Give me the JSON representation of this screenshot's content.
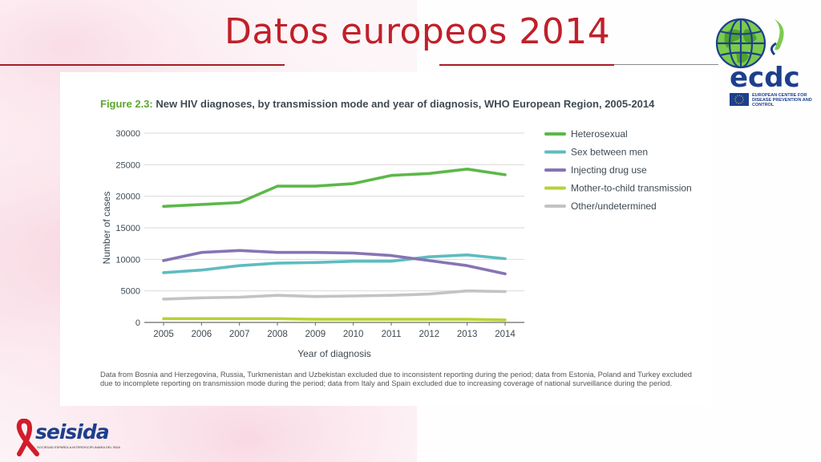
{
  "slide": {
    "title": "Datos europeos 2014"
  },
  "figure": {
    "number": "Figure 2.3:",
    "caption": "New HIV diagnoses, by transmission mode and year of diagnosis, WHO European Region, 2005-2014",
    "note": "Data from Bosnia and Herzegovina, Russia, Turkmenistan and Uzbekistan excluded due to inconsistent reporting during the period; data from Estonia, Poland and Turkey excluded due to incomplete reporting on transmission mode during the period; data from Italy and Spain excluded due to increasing coverage of national surveillance during the period."
  },
  "logos": {
    "ecdc_text": "ecdc",
    "ecdc_subtitle": "EUROPEAN CENTRE FOR DISEASE PREVENTION AND CONTROL",
    "seisida_text": "seisida",
    "seisida_tagline": "SOCIEDAD ESPAÑOLA INTERDISCIPLINARIA DEL SIDA"
  },
  "colors": {
    "title": "#c0202a",
    "heterosexual": "#5cb848",
    "msm": "#5ebcbf",
    "idu": "#8674b4",
    "mtct": "#b6d336",
    "other": "#c3c3c3"
  },
  "chart_data": {
    "type": "line",
    "title": "New HIV diagnoses, by transmission mode and year of diagnosis, WHO European Region, 2005-2014",
    "xlabel": "Year of diagnosis",
    "ylabel": "Number of cases",
    "x": [
      "2005",
      "2006",
      "2007",
      "2008",
      "2009",
      "2010",
      "2011",
      "2012",
      "2013",
      "2014"
    ],
    "ylim": [
      0,
      30000
    ],
    "yticks": [
      "0",
      "5000",
      "10000",
      "15000",
      "20000",
      "25000",
      "30000"
    ],
    "grid": "horizontal",
    "legend_position": "right",
    "series": [
      {
        "name": "Heterosexual",
        "color": "#5cb848",
        "values": [
          18400,
          18700,
          19000,
          21600,
          21600,
          22000,
          23300,
          23600,
          24300,
          23400
        ]
      },
      {
        "name": "Sex between men",
        "color": "#5ebcbf",
        "values": [
          7900,
          8300,
          9000,
          9400,
          9500,
          9700,
          9700,
          10400,
          10700,
          10100
        ]
      },
      {
        "name": "Injecting drug use",
        "color": "#8674b4",
        "values": [
          9800,
          11100,
          11400,
          11100,
          11100,
          11000,
          10600,
          9800,
          9000,
          7700
        ]
      },
      {
        "name": "Mother-to-child transmission",
        "color": "#b6d336",
        "values": [
          600,
          600,
          600,
          600,
          500,
          500,
          500,
          500,
          500,
          400
        ]
      },
      {
        "name": "Other/undetermined",
        "color": "#c3c3c3",
        "values": [
          3700,
          3900,
          4000,
          4300,
          4100,
          4200,
          4300,
          4500,
          5000,
          4900
        ]
      }
    ]
  }
}
